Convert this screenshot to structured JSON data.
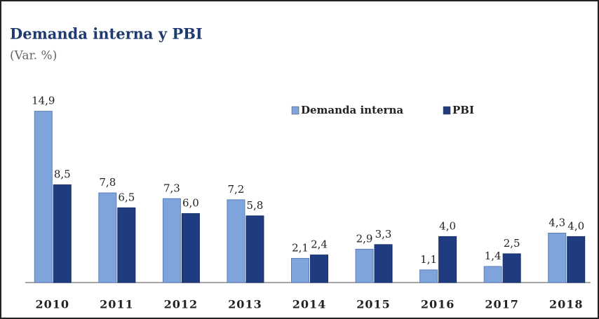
{
  "chart_data": {
    "type": "bar",
    "title": "Demanda interna y PBI",
    "subtitle": "(Var. %)",
    "categories": [
      "2010",
      "2011",
      "2012",
      "2013",
      "2014",
      "2015",
      "2016",
      "2017",
      "2018"
    ],
    "series": [
      {
        "name": "Demanda interna",
        "color": "#7fa4dc",
        "values": [
          14.9,
          7.8,
          7.3,
          7.2,
          2.1,
          2.9,
          1.1,
          1.4,
          4.3
        ],
        "value_labels": [
          "14,9",
          "7,8",
          "7,3",
          "7,2",
          "2,1",
          "2,9",
          "1,1",
          "1,4",
          "4,3"
        ]
      },
      {
        "name": "PBI",
        "color": "#1f3c80",
        "values": [
          8.5,
          6.5,
          6.0,
          5.8,
          2.4,
          3.3,
          4.0,
          2.5,
          4.0
        ],
        "value_labels": [
          "8,5",
          "6,5",
          "6,0",
          "5,8",
          "2,4",
          "3,3",
          "4,0",
          "2,5",
          "4,0"
        ]
      }
    ],
    "ylim": [
      0,
      15
    ]
  }
}
